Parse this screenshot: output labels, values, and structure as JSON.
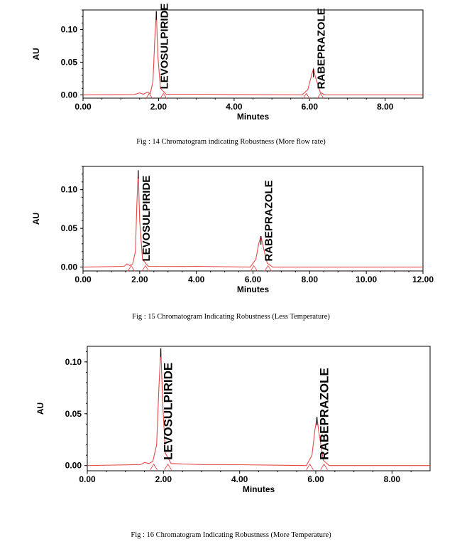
{
  "chart_data": [
    {
      "type": "line",
      "caption": "Fig : 14 Chromatogram indicating Robustness (More flow rate)",
      "xlabel": "Minutes",
      "ylabel": "AU",
      "xlim": [
        0,
        9
      ],
      "ylim": [
        -0.005,
        0.13
      ],
      "xticks": [
        "0.00",
        "2.00",
        "4.00",
        "6.00",
        "8.00"
      ],
      "yticks": [
        "0.00",
        "0.05",
        "0.10"
      ],
      "series": [
        {
          "color": "#e8474a",
          "points": [
            [
              0,
              0
            ],
            [
              1.35,
              0.0005
            ],
            [
              1.5,
              0.003
            ],
            [
              1.6,
              0.001
            ],
            [
              1.7,
              0.004
            ],
            [
              1.78,
              0.002
            ],
            [
              1.85,
              0.02
            ],
            [
              1.9,
              0.085
            ],
            [
              1.94,
              0.128
            ],
            [
              1.98,
              0.06
            ],
            [
              2.05,
              0.01
            ],
            [
              2.2,
              0.001
            ],
            [
              3.0,
              0.001
            ],
            [
              4.0,
              0.0005
            ],
            [
              5.8,
              0.0
            ],
            [
              5.95,
              0.008
            ],
            [
              6.05,
              0.03
            ],
            [
              6.1,
              0.04
            ],
            [
              6.15,
              0.028
            ],
            [
              6.28,
              0.004
            ],
            [
              6.4,
              0.0
            ],
            [
              9,
              0
            ]
          ]
        }
      ],
      "peaks": [
        {
          "label": "LEVOSULPIRIDE",
          "rt": 1.94,
          "height": 0.128
        },
        {
          "label": "RABEPRAZOLE",
          "rt": 6.1,
          "height": 0.04
        }
      ],
      "grid": false
    },
    {
      "type": "line",
      "caption": "Fig : 15 Chromatogram Indicating Robustness (Less Temperature)",
      "xlabel": "Minutes",
      "ylabel": "AU",
      "xlim": [
        0,
        12
      ],
      "ylim": [
        -0.005,
        0.13
      ],
      "xticks": [
        "0.00",
        "2.00",
        "4.00",
        "6.00",
        "8.00",
        "10.00",
        "12.00"
      ],
      "yticks": [
        "0.00",
        "0.05",
        "0.10"
      ],
      "series": [
        {
          "color": "#e8474a",
          "points": [
            [
              0,
              0
            ],
            [
              1.45,
              0.001
            ],
            [
              1.55,
              0.004
            ],
            [
              1.65,
              0.002
            ],
            [
              1.75,
              0.004
            ],
            [
              1.85,
              0.02
            ],
            [
              1.9,
              0.08
            ],
            [
              1.95,
              0.125
            ],
            [
              2.0,
              0.06
            ],
            [
              2.1,
              0.01
            ],
            [
              2.3,
              0.001
            ],
            [
              3.5,
              0.0008
            ],
            [
              4.0,
              0.001
            ],
            [
              5.9,
              0.0
            ],
            [
              6.1,
              0.01
            ],
            [
              6.2,
              0.03
            ],
            [
              6.28,
              0.04
            ],
            [
              6.35,
              0.028
            ],
            [
              6.5,
              0.005
            ],
            [
              6.7,
              0.0
            ],
            [
              12,
              0
            ]
          ]
        }
      ],
      "peaks": [
        {
          "label": "LEVOSULPIRIDE",
          "rt": 1.95,
          "height": 0.125
        },
        {
          "label": "RABEPRAZOLE",
          "rt": 6.28,
          "height": 0.04
        }
      ],
      "grid": false
    },
    {
      "type": "line",
      "caption": "Fig : 16 Chromatogram Indicating Robustness (More Temperature)",
      "xlabel": "Minutes",
      "ylabel": "AU",
      "xlim": [
        0,
        9
      ],
      "ylim": [
        -0.005,
        0.115
      ],
      "xticks": [
        "0.00",
        "2.00",
        "4.00",
        "6.00",
        "8.00"
      ],
      "yticks": [
        "0.00",
        "0.05",
        "0.10"
      ],
      "series": [
        {
          "color": "#e8474a",
          "points": [
            [
              0,
              0
            ],
            [
              1.4,
              0.001
            ],
            [
              1.5,
              0.003
            ],
            [
              1.62,
              0.002
            ],
            [
              1.72,
              0.004
            ],
            [
              1.82,
              0.02
            ],
            [
              1.88,
              0.075
            ],
            [
              1.93,
              0.113
            ],
            [
              1.98,
              0.06
            ],
            [
              2.05,
              0.012
            ],
            [
              2.2,
              0.002
            ],
            [
              3.0,
              0.001
            ],
            [
              4.0,
              0.0008
            ],
            [
              5.75,
              0.0
            ],
            [
              5.9,
              0.01
            ],
            [
              5.98,
              0.035
            ],
            [
              6.03,
              0.047
            ],
            [
              6.08,
              0.032
            ],
            [
              6.2,
              0.005
            ],
            [
              6.35,
              0.0
            ],
            [
              9,
              0
            ]
          ]
        }
      ],
      "peaks": [
        {
          "label": "LEVOSULPIRIDE",
          "rt": 1.93,
          "height": 0.113
        },
        {
          "label": "RABEPRAZOLE",
          "rt": 6.03,
          "height": 0.047
        }
      ],
      "grid": false
    }
  ]
}
